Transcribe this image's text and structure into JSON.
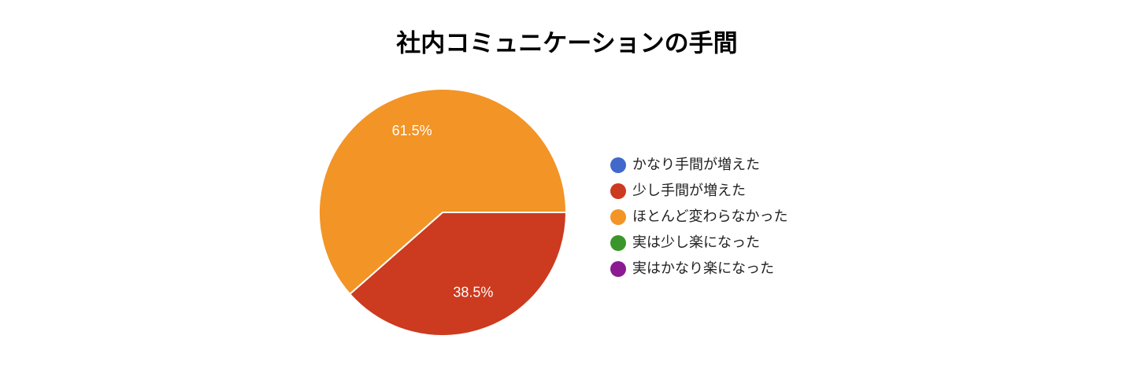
{
  "chart_data": {
    "type": "pie",
    "title": "社内コミュニケーションの手間",
    "categories": [
      "かなり手間が増えた",
      "少し手間が増えた",
      "ほとんど変わらなかった",
      "実は少し楽になった",
      "実はかなり楽になった"
    ],
    "values": [
      0,
      38.5,
      61.5,
      0,
      0
    ],
    "value_labels": [
      null,
      "38.5%",
      "61.5%",
      null,
      null
    ],
    "colors": [
      "#4169cc",
      "#cc3a1f",
      "#f39426",
      "#3a962a",
      "#8b1a93"
    ],
    "legend": "right"
  }
}
